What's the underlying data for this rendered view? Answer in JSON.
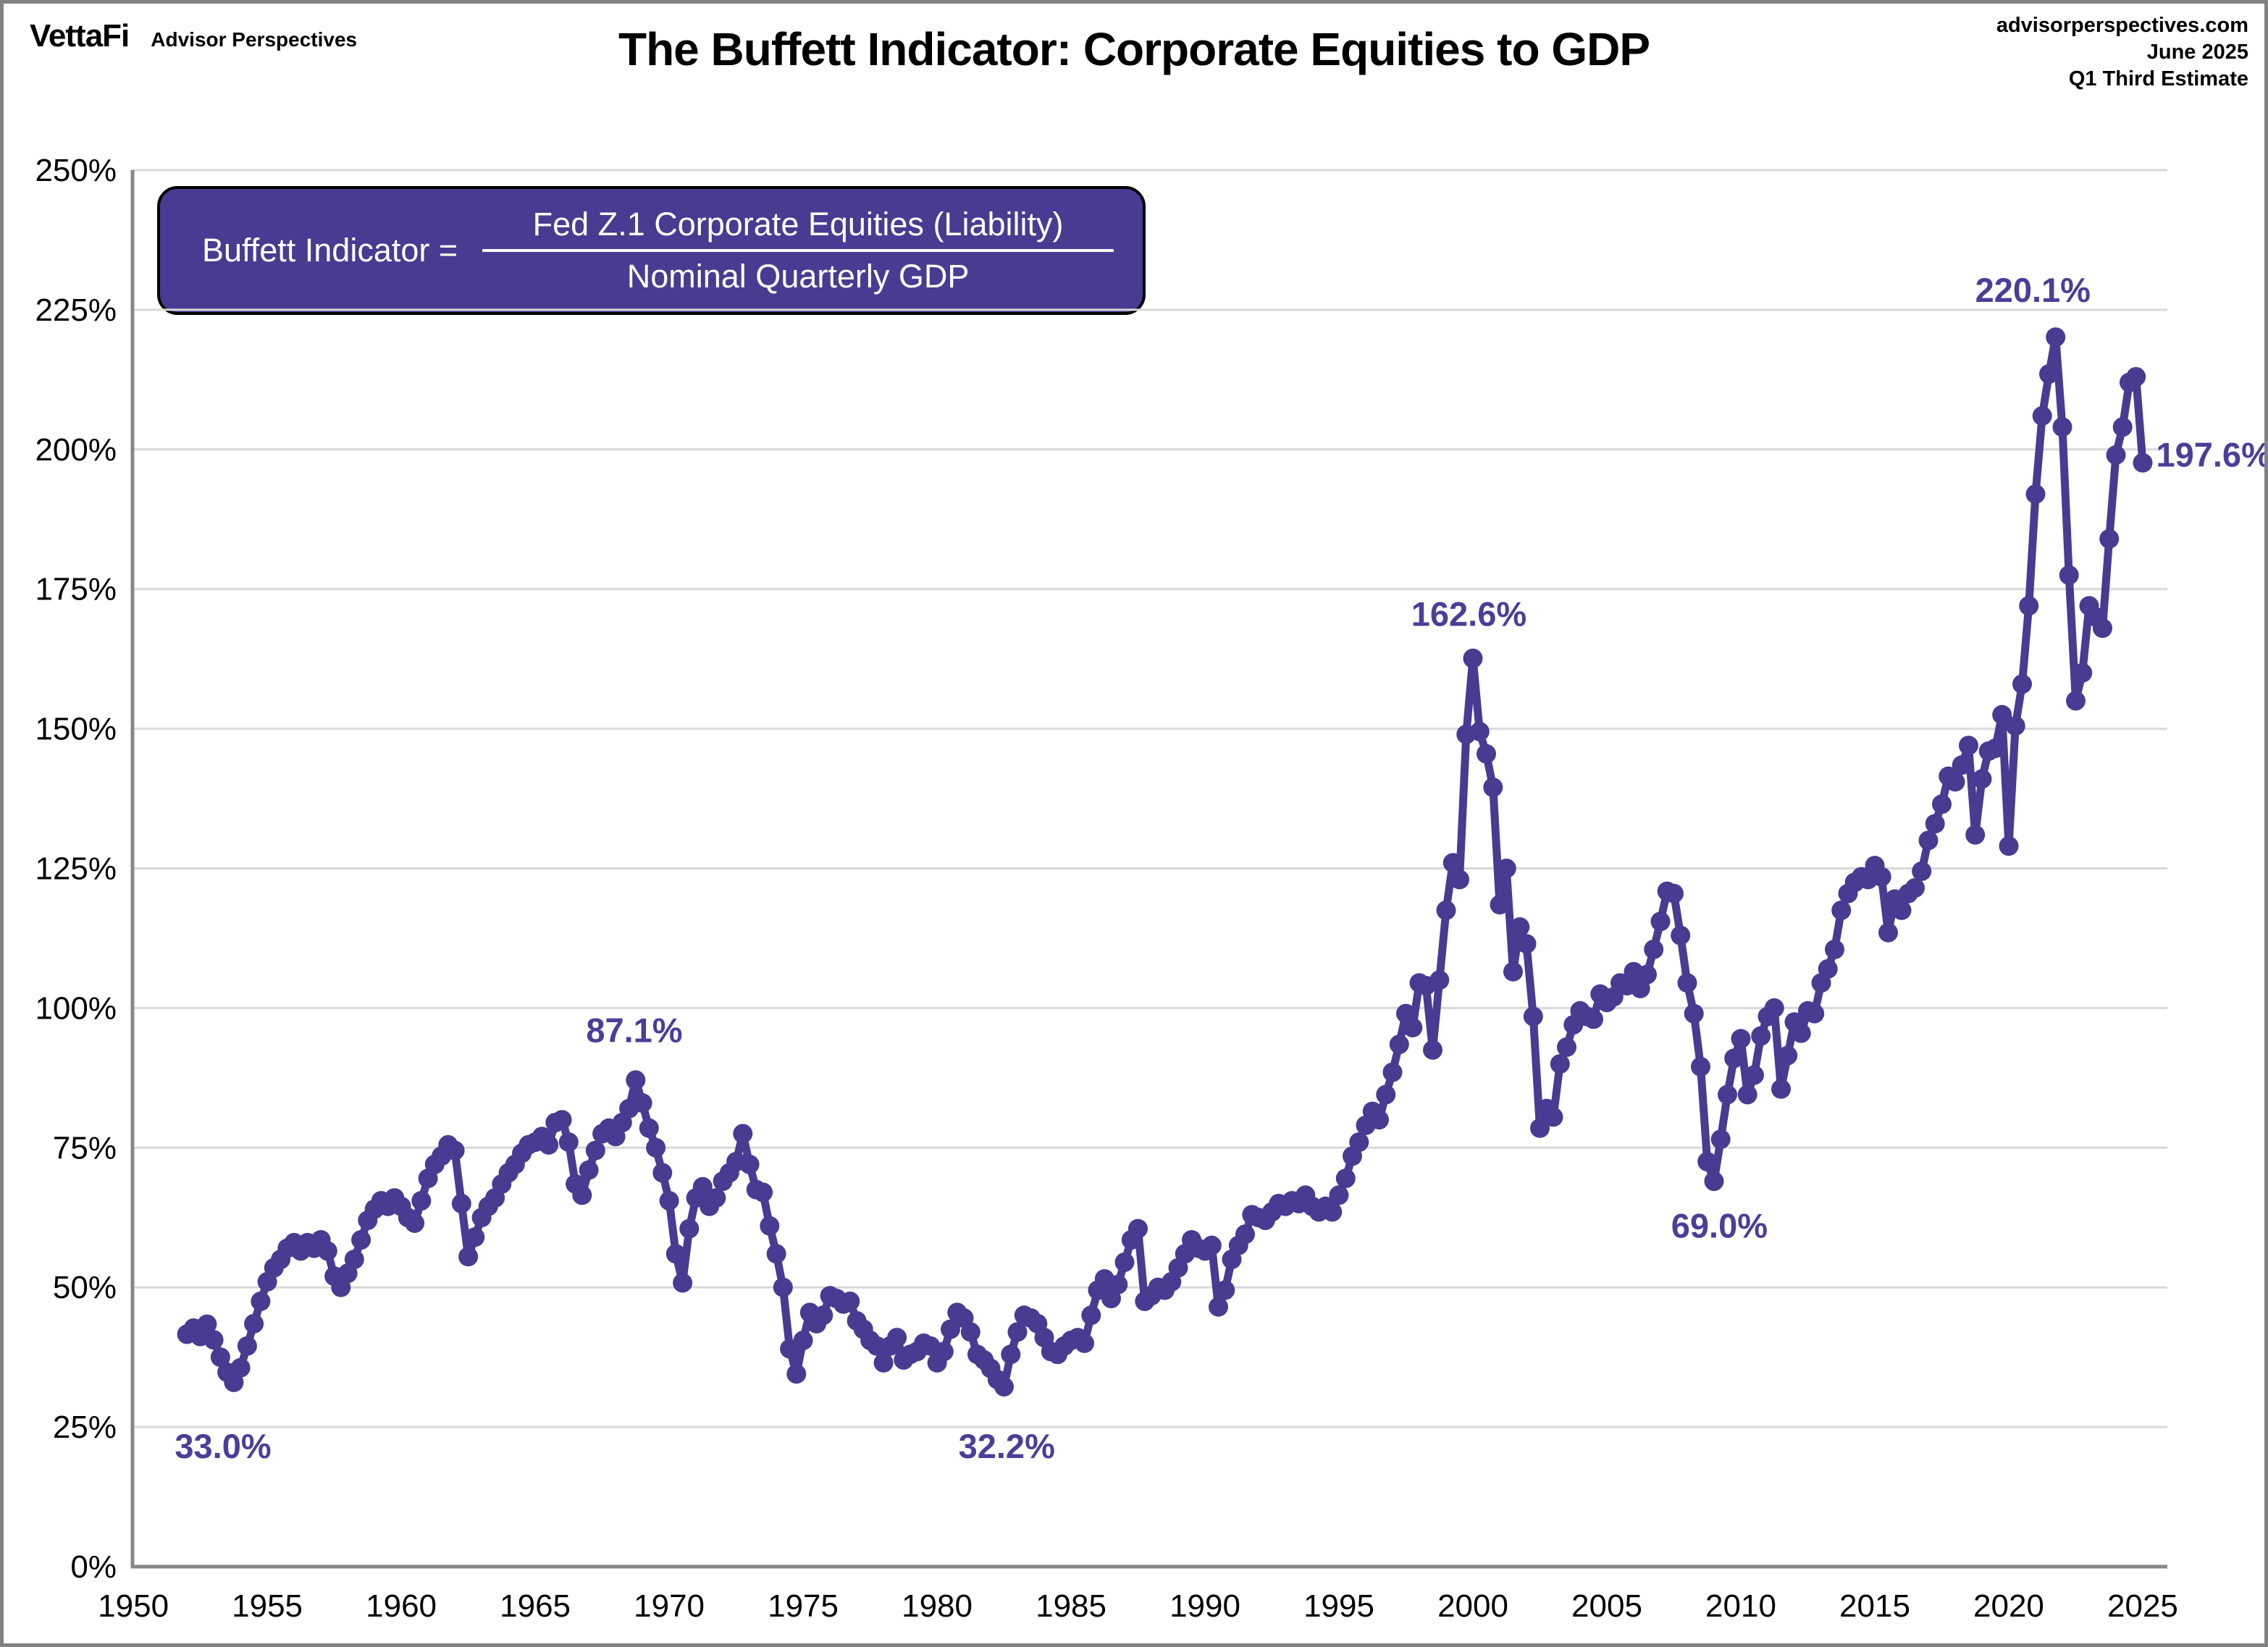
{
  "branding": {
    "logo": "VettaFi",
    "sublogo": "Advisor Perspectives"
  },
  "masthead": {
    "site": "advisorperspectives.com",
    "date": "June 2025",
    "estimate": "Q1 Third Estimate"
  },
  "title": "The Buffett Indicator: Corporate Equities to GDP",
  "formula": {
    "lhs": "Buffett Indicator =",
    "numerator": "Fed Z.1 Corporate Equities (Liability)",
    "denominator": "Nominal Quarterly GDP"
  },
  "chart_data": {
    "type": "line",
    "title": "The Buffett Indicator: Corporate Equities to GDP",
    "series_name": "Buffett Indicator (Corporate Equities to GDP)",
    "frequency": "quarterly",
    "x_start": 1952.0,
    "x_step": 0.25,
    "xlim": [
      1949.97,
      2025.92
    ],
    "ylim": [
      0,
      250
    ],
    "x_ticks": [
      1950,
      1955,
      1960,
      1965,
      1970,
      1975,
      1980,
      1985,
      1990,
      1995,
      2000,
      2005,
      2010,
      2015,
      2020,
      2025
    ],
    "y_ticks": [
      0,
      25,
      50,
      75,
      100,
      125,
      150,
      175,
      200,
      225,
      250
    ],
    "y_tick_suffix": "%",
    "grid": "horizontal-only",
    "legend": "none",
    "values": [
      41.6,
      42.7,
      41.2,
      43.4,
      40.6,
      37.5,
      34.8,
      33.0,
      35.6,
      39.5,
      43.5,
      47.5,
      51.0,
      53.5,
      55.0,
      57.0,
      58.0,
      56.5,
      58.0,
      57.0,
      58.5,
      56.5,
      52.0,
      50.0,
      52.5,
      55.0,
      58.5,
      62.0,
      64.0,
      65.5,
      64.5,
      66.0,
      64.5,
      62.5,
      61.5,
      65.5,
      69.5,
      72.0,
      73.5,
      75.5,
      74.5,
      65.0,
      55.5,
      59.0,
      62.5,
      64.5,
      66.0,
      68.5,
      70.5,
      72.0,
      74.0,
      75.5,
      76.0,
      77.0,
      75.5,
      79.5,
      80.0,
      76.0,
      68.5,
      66.5,
      71.0,
      74.5,
      77.5,
      78.5,
      77.0,
      79.5,
      82.0,
      87.1,
      83.0,
      78.5,
      75.0,
      70.5,
      65.5,
      56.0,
      50.8,
      60.5,
      66.0,
      68.0,
      64.5,
      66.0,
      69.0,
      70.5,
      72.5,
      77.5,
      72.0,
      67.5,
      67.0,
      61.0,
      56.0,
      50.0,
      39.0,
      34.5,
      40.5,
      45.5,
      43.5,
      45.0,
      48.5,
      48.0,
      47.0,
      47.5,
      44.0,
      42.5,
      40.5,
      39.5,
      36.5,
      39.5,
      41.0,
      37.0,
      38.0,
      38.5,
      40.0,
      39.5,
      36.5,
      38.5,
      42.5,
      45.5,
      44.5,
      42.0,
      38.0,
      37.0,
      35.5,
      33.5,
      32.2,
      38.0,
      42.0,
      45.0,
      44.5,
      43.5,
      41.0,
      38.5,
      38.0,
      39.5,
      40.5,
      41.0,
      40.0,
      45.0,
      49.5,
      51.5,
      48.0,
      50.5,
      54.5,
      58.5,
      60.5,
      47.5,
      48.5,
      50.0,
      49.5,
      51.0,
      53.5,
      56.0,
      58.5,
      57.0,
      56.5,
      57.5,
      46.5,
      49.5,
      55.0,
      57.5,
      59.5,
      63.0,
      62.5,
      62.0,
      63.5,
      65.0,
      64.5,
      65.5,
      65.0,
      66.5,
      64.5,
      63.5,
      64.5,
      63.5,
      66.5,
      69.5,
      73.5,
      76.0,
      79.0,
      81.5,
      80.0,
      84.5,
      88.5,
      93.5,
      99.0,
      96.5,
      104.5,
      104.0,
      92.5,
      105.0,
      117.5,
      126.0,
      123.0,
      149.0,
      162.6,
      149.5,
      145.5,
      139.5,
      118.5,
      125.0,
      106.5,
      114.5,
      111.5,
      98.5,
      78.5,
      82.0,
      80.5,
      90.0,
      93.0,
      97.0,
      99.5,
      98.5,
      98.0,
      102.5,
      101.0,
      102.0,
      104.5,
      104.0,
      106.5,
      103.5,
      106.0,
      110.5,
      115.5,
      120.9,
      120.5,
      113.0,
      104.5,
      99.0,
      89.5,
      72.5,
      69.0,
      76.5,
      84.5,
      91.0,
      94.5,
      84.5,
      88.0,
      95.0,
      98.5,
      100.0,
      85.5,
      91.5,
      97.5,
      95.5,
      99.5,
      99.0,
      104.5,
      107.0,
      110.5,
      117.5,
      120.5,
      122.5,
      123.5,
      123.0,
      125.5,
      123.5,
      113.5,
      119.5,
      117.5,
      120.5,
      121.5,
      124.5,
      130.0,
      133.0,
      136.5,
      141.5,
      140.5,
      143.5,
      147.0,
      131.0,
      141.0,
      146.0,
      146.5,
      152.5,
      129.0,
      150.5,
      158.0,
      172.0,
      192.0,
      206.0,
      213.5,
      220.1,
      204.0,
      177.5,
      155.0,
      160.0,
      172.0,
      170.0,
      168.0,
      184.0,
      199.0,
      204.0,
      212.0,
      213.0,
      197.6
    ],
    "annotations": [
      {
        "label": "33.0%",
        "year": 1953.35,
        "value": 21.5,
        "anchor": "middle"
      },
      {
        "label": "87.1%",
        "year": 1968.7,
        "value": 96.0,
        "anchor": "middle"
      },
      {
        "label": "32.2%",
        "year": 1982.6,
        "value": 21.5,
        "anchor": "middle"
      },
      {
        "label": "162.6%",
        "year": 1999.85,
        "value": 170.5,
        "anchor": "middle"
      },
      {
        "label": "69.0%",
        "year": 2009.2,
        "value": 61.0,
        "anchor": "middle"
      },
      {
        "label": "220.1%",
        "year": 2020.9,
        "value": 228.5,
        "anchor": "middle"
      },
      {
        "label": "197.6%",
        "year": 2025.5,
        "value": 199.0,
        "anchor": "start"
      }
    ],
    "colors": {
      "line": "#473b92",
      "marker": "#473b92",
      "annotation": "#4b3e99",
      "grid": "#d9d9d9",
      "axis": "#878787",
      "tick_label": "#000000"
    }
  }
}
